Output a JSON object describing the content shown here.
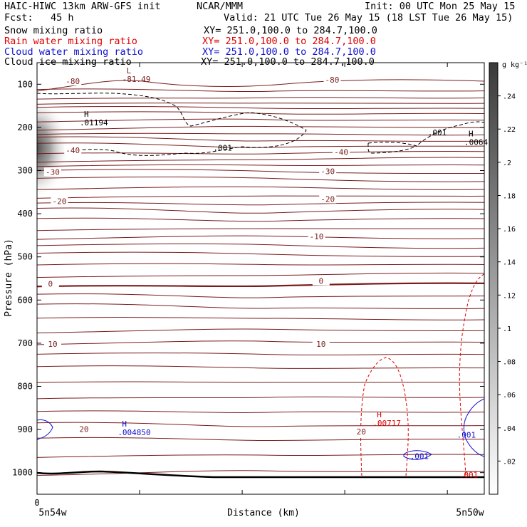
{
  "header": {
    "line1_left": "HAIC-HIWC 13km ARW-GFS init",
    "line1_center": "NCAR/MMM",
    "line1_right": "Init: 00 UTC Mon 25 May 15",
    "line2_left": "Fcst:   45 h",
    "line2_right": "Valid: 21 UTC Tue 26 May 15 (18 LST Tue 26 May 15)",
    "fields": [
      {
        "label": "Snow mixing ratio",
        "xy": "XY= 251.0,100.0 to 284.7,100.0",
        "color": "#000000"
      },
      {
        "label": "Rain water mixing ratio",
        "xy": "XY= 251.0,100.0 to 284.7,100.0",
        "color": "#e00000"
      },
      {
        "label": "Cloud water mixing ratio",
        "xy": "XY= 251.0,100.0 to 284.7,100.0",
        "color": "#1010d0"
      },
      {
        "label": "Cloud ice mixing ratio",
        "xy": "XY= 251.0,100.0 to 284.7,100.0",
        "color": "#000000"
      }
    ]
  },
  "colorbar": {
    "unit": "g kg⁻¹",
    "ticks": [
      ".24",
      ".22",
      ".2",
      ".18",
      ".16",
      ".14",
      ".12",
      ".1",
      ".08",
      ".06",
      ".04",
      ".02"
    ],
    "tick_values": [
      0.24,
      0.22,
      0.2,
      0.18,
      0.16,
      0.14,
      0.12,
      0.1,
      0.08,
      0.06,
      0.04,
      0.02
    ],
    "range": [
      0,
      0.26
    ]
  },
  "chart_data": {
    "type": "contour",
    "xlabel": "Distance (km)",
    "ylabel": "Pressure (hPa)",
    "x_start_tick": "0",
    "x_left_label": "5n54w",
    "x_right_label": "5n50w",
    "y_ticks": [
      100,
      200,
      300,
      400,
      500,
      600,
      700,
      800,
      900,
      1000
    ],
    "y_tick_labels": [
      "100",
      "200",
      "300",
      "400",
      "500",
      "600",
      "700",
      "800",
      "900",
      "1000"
    ],
    "ylim": [
      1050,
      50
    ],
    "colors": {
      "temperature": "#7a1c1c",
      "rain": "#e00000",
      "cloud_water": "#1010d0",
      "snow": "#000000"
    },
    "temperature_labels": [
      {
        "text": "-80",
        "x": 0.08,
        "p": 93
      },
      {
        "text": "-80",
        "x": 0.66,
        "p": 90
      },
      {
        "text": "-40",
        "x": 0.08,
        "p": 253
      },
      {
        "text": "-40",
        "x": 0.68,
        "p": 257
      },
      {
        "text": "-30",
        "x": 0.035,
        "p": 303
      },
      {
        "text": "-30",
        "x": 0.65,
        "p": 302
      },
      {
        "text": "-20",
        "x": 0.05,
        "p": 371
      },
      {
        "text": "-20",
        "x": 0.65,
        "p": 366
      },
      {
        "text": "-10",
        "x": 0.625,
        "p": 453
      },
      {
        "text": "0",
        "x": 0.03,
        "p": 562
      },
      {
        "text": "0",
        "x": 0.635,
        "p": 556
      },
      {
        "text": "10",
        "x": 0.035,
        "p": 702
      },
      {
        "text": "10",
        "x": 0.635,
        "p": 702
      },
      {
        "text": "20",
        "x": 0.105,
        "p": 899
      },
      {
        "text": "20",
        "x": 0.725,
        "p": 905
      }
    ],
    "extrema": [
      {
        "mark": "L",
        "value": "-81.49",
        "x": 0.2,
        "p": 85,
        "field": "temperature"
      },
      {
        "mark": "H",
        "value": ".01194",
        "x": 0.105,
        "p": 185,
        "field": "snow"
      },
      {
        "mark": "H",
        "value": ".0064",
        "x": 0.965,
        "p": 231,
        "field": "snow"
      },
      {
        "mark": "H",
        "value": ".004850",
        "x": 0.19,
        "p": 903,
        "field": "cloud_water"
      },
      {
        "mark": "H",
        "value": ".00717",
        "x": 0.76,
        "p": 882,
        "field": "rain"
      }
    ],
    "contour_labels": [
      {
        "text": ".001",
        "x": 0.415,
        "p": 247,
        "field": "snow"
      },
      {
        "text": ".001",
        "x": 0.895,
        "p": 212,
        "field": "snow"
      },
      {
        "text": ".001",
        "x": 0.855,
        "p": 962,
        "field": "cloud_water"
      },
      {
        "text": ".001",
        "x": 0.96,
        "p": 912,
        "field": "cloud_water"
      },
      {
        "text": ".001",
        "x": 0.965,
        "p": 1005,
        "field": "rain"
      }
    ]
  }
}
